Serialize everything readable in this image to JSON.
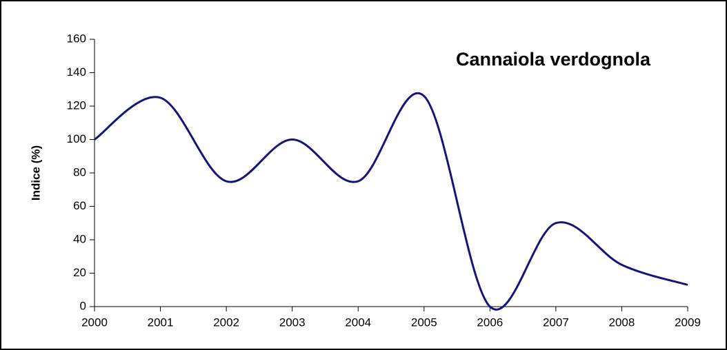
{
  "chart_data": {
    "type": "line",
    "title": "Cannaiola verdognola",
    "ylabel": "Indice (%)",
    "x": [
      2000,
      2001,
      2002,
      2003,
      2004,
      2005,
      2006,
      2007,
      2008,
      2009
    ],
    "series": [
      {
        "name": "Cannaiola verdognola",
        "color": "#14147a",
        "values": [
          100,
          125,
          75,
          100,
          75,
          126,
          0,
          50,
          25,
          13
        ]
      }
    ],
    "xlim": [
      2000,
      2009
    ],
    "xticks": [
      2000,
      2001,
      2002,
      2003,
      2004,
      2005,
      2006,
      2007,
      2008,
      2009
    ],
    "ylim": [
      0,
      160
    ],
    "yticks": [
      0,
      20,
      40,
      60,
      80,
      100,
      120,
      140,
      160
    ],
    "grid": false
  }
}
